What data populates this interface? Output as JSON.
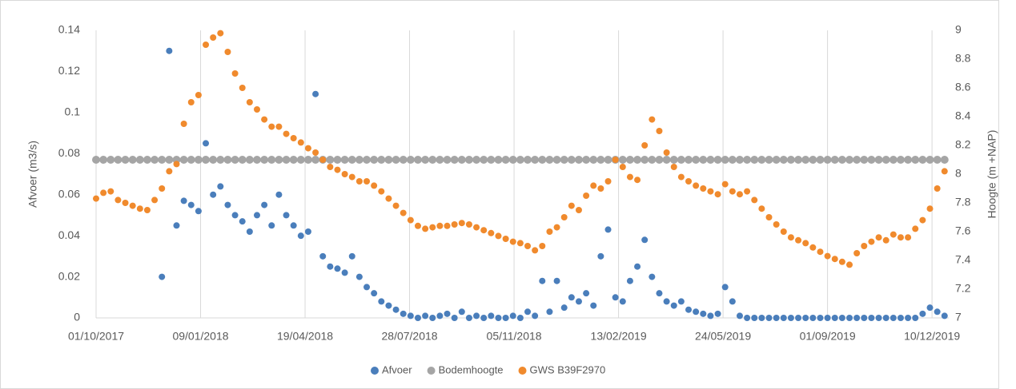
{
  "chart_data": {
    "type": "scatter",
    "y_label": "Afvoer (m3/s)",
    "y2_label": "Hoogte (m +NAP)",
    "x": [
      "01/10/2017",
      "08/10/2017",
      "15/10/2017",
      "22/10/2017",
      "29/10/2017",
      "05/11/2017",
      "12/11/2017",
      "19/11/2017",
      "26/11/2017",
      "03/12/2017",
      "10/12/2017",
      "17/12/2017",
      "24/12/2017",
      "31/12/2017",
      "07/01/2018",
      "14/01/2018",
      "21/01/2018",
      "28/01/2018",
      "04/02/2018",
      "11/02/2018",
      "18/02/2018",
      "25/02/2018",
      "04/03/2018",
      "11/03/2018",
      "18/03/2018",
      "25/03/2018",
      "01/04/2018",
      "08/04/2018",
      "15/04/2018",
      "22/04/2018",
      "29/04/2018",
      "06/05/2018",
      "13/05/2018",
      "20/05/2018",
      "27/05/2018",
      "03/06/2018",
      "10/06/2018",
      "17/06/2018",
      "24/06/2018",
      "01/07/2018",
      "08/07/2018",
      "15/07/2018",
      "22/07/2018",
      "29/07/2018",
      "05/08/2018",
      "12/08/2018",
      "19/08/2018",
      "26/08/2018",
      "02/09/2018",
      "09/09/2018",
      "16/09/2018",
      "23/09/2018",
      "30/09/2018",
      "07/10/2018",
      "14/10/2018",
      "21/10/2018",
      "28/10/2018",
      "04/11/2018",
      "11/11/2018",
      "18/11/2018",
      "25/11/2018",
      "02/12/2018",
      "09/12/2018",
      "16/12/2018",
      "23/12/2018",
      "30/12/2018",
      "06/01/2019",
      "13/01/2019",
      "20/01/2019",
      "27/01/2019",
      "03/02/2019",
      "10/02/2019",
      "17/02/2019",
      "24/02/2019",
      "03/03/2019",
      "10/03/2019",
      "17/03/2019",
      "24/03/2019",
      "31/03/2019",
      "07/04/2019",
      "14/04/2019",
      "21/04/2019",
      "28/04/2019",
      "05/05/2019",
      "12/05/2019",
      "19/05/2019",
      "26/05/2019",
      "02/06/2019",
      "09/06/2019",
      "16/06/2019",
      "23/06/2019",
      "30/06/2019",
      "07/07/2019",
      "14/07/2019",
      "21/07/2019",
      "28/07/2019",
      "04/08/2019",
      "11/08/2019",
      "18/08/2019",
      "25/08/2019",
      "01/09/2019",
      "08/09/2019",
      "15/09/2019",
      "22/09/2019",
      "29/09/2019",
      "06/10/2019",
      "13/10/2019",
      "20/10/2019",
      "27/10/2019",
      "03/11/2019",
      "10/11/2019",
      "17/11/2019",
      "24/11/2019",
      "01/12/2019",
      "08/12/2019",
      "15/12/2019",
      "22/12/2019"
    ],
    "series": [
      {
        "name": "Afvoer",
        "color": "#4a7ebb",
        "axis": "y",
        "values": [
          null,
          null,
          null,
          null,
          null,
          null,
          null,
          null,
          null,
          0.02,
          0.13,
          0.045,
          0.057,
          0.055,
          0.052,
          0.085,
          0.06,
          0.064,
          0.055,
          0.05,
          0.047,
          0.042,
          0.05,
          0.055,
          0.045,
          0.06,
          0.05,
          0.045,
          0.04,
          0.042,
          0.109,
          0.03,
          0.025,
          0.024,
          0.022,
          0.03,
          0.02,
          0.015,
          0.012,
          0.008,
          0.006,
          0.004,
          0.002,
          0.001,
          0,
          0.001,
          0,
          0.001,
          0.002,
          0,
          0.003,
          0,
          0.001,
          0,
          0.001,
          0,
          0,
          0.001,
          0,
          0.003,
          0.001,
          0.018,
          0.003,
          0.018,
          0.005,
          0.01,
          0.008,
          0.012,
          0.006,
          0.03,
          0.043,
          0.01,
          0.008,
          0.018,
          0.025,
          0.038,
          0.02,
          0.012,
          0.008,
          0.006,
          0.008,
          0.004,
          0.003,
          0.002,
          0.001,
          0.002,
          0.015,
          0.008,
          0.001,
          0,
          0,
          0,
          0,
          0,
          0,
          0,
          0,
          0,
          0,
          0,
          0,
          0,
          0,
          0,
          0,
          0,
          0,
          0,
          0,
          0,
          0,
          0,
          0,
          0.002,
          0.005,
          0.003,
          0.001
        ]
      },
      {
        "name": "Bodemhoogte",
        "color": "#a5a5a5",
        "axis": "y",
        "values": [
          0.077,
          0.077,
          0.077,
          0.077,
          0.077,
          0.077,
          0.077,
          0.077,
          0.077,
          0.077,
          0.077,
          0.077,
          0.077,
          0.077,
          0.077,
          0.077,
          0.077,
          0.077,
          0.077,
          0.077,
          0.077,
          0.077,
          0.077,
          0.077,
          0.077,
          0.077,
          0.077,
          0.077,
          0.077,
          0.077,
          0.077,
          0.077,
          0.077,
          0.077,
          0.077,
          0.077,
          0.077,
          0.077,
          0.077,
          0.077,
          0.077,
          0.077,
          0.077,
          0.077,
          0.077,
          0.077,
          0.077,
          0.077,
          0.077,
          0.077,
          0.077,
          0.077,
          0.077,
          0.077,
          0.077,
          0.077,
          0.077,
          0.077,
          0.077,
          0.077,
          0.077,
          0.077,
          0.077,
          0.077,
          0.077,
          0.077,
          0.077,
          0.077,
          0.077,
          0.077,
          0.077,
          0.077,
          0.077,
          0.077,
          0.077,
          0.077,
          0.077,
          0.077,
          0.077,
          0.077,
          0.077,
          0.077,
          0.077,
          0.077,
          0.077,
          0.077,
          0.077,
          0.077,
          0.077,
          0.077,
          0.077,
          0.077,
          0.077,
          0.077,
          0.077,
          0.077,
          0.077,
          0.077,
          0.077,
          0.077,
          0.077,
          0.077,
          0.077,
          0.077,
          0.077,
          0.077,
          0.077,
          0.077,
          0.077,
          0.077,
          0.077,
          0.077,
          0.077,
          0.077,
          0.077,
          0.077,
          0.077
        ]
      },
      {
        "name": "GWS B39F2970",
        "color": "#f08a2d",
        "axis": "y2",
        "values": [
          7.83,
          7.87,
          7.88,
          7.82,
          7.8,
          7.78,
          7.76,
          7.75,
          7.82,
          7.9,
          8.02,
          8.07,
          8.35,
          8.5,
          8.55,
          8.9,
          8.95,
          8.98,
          8.85,
          8.7,
          8.6,
          8.5,
          8.45,
          8.38,
          8.33,
          8.33,
          8.28,
          8.25,
          8.22,
          8.18,
          8.15,
          8.1,
          8.05,
          8.03,
          8,
          7.98,
          7.95,
          7.95,
          7.92,
          7.88,
          7.83,
          7.78,
          7.73,
          7.68,
          7.64,
          7.62,
          7.63,
          7.64,
          7.64,
          7.65,
          7.66,
          7.65,
          7.63,
          7.61,
          7.59,
          7.57,
          7.55,
          7.53,
          7.52,
          7.5,
          7.47,
          7.5,
          7.6,
          7.63,
          7.7,
          7.78,
          7.75,
          7.85,
          7.92,
          7.9,
          7.95,
          8.1,
          8.05,
          7.98,
          7.96,
          8.2,
          8.38,
          8.3,
          8.15,
          8.05,
          7.98,
          7.95,
          7.92,
          7.9,
          7.88,
          7.86,
          7.93,
          7.88,
          7.86,
          7.88,
          7.82,
          7.76,
          7.7,
          7.65,
          7.6,
          7.56,
          7.54,
          7.52,
          7.49,
          7.46,
          7.43,
          7.41,
          7.39,
          7.37,
          7.45,
          7.5,
          7.53,
          7.56,
          7.54,
          7.58,
          7.56,
          7.56,
          7.62,
          7.68,
          7.76,
          7.9,
          8.02
        ]
      }
    ],
    "xlim": [
      "01/10/2017",
      "26/12/2019"
    ],
    "xticks": [
      "01/10/2017",
      "09/01/2018",
      "19/04/2018",
      "28/07/2018",
      "05/11/2018",
      "13/02/2019",
      "24/05/2019",
      "01/09/2019",
      "10/12/2019"
    ],
    "ylim": [
      0,
      0.14
    ],
    "yticks": [
      0,
      0.02,
      0.04,
      0.06,
      0.08,
      0.1,
      0.12,
      0.14
    ],
    "y2lim": [
      7,
      9
    ],
    "y2ticks": [
      7,
      7.2,
      7.4,
      7.6,
      7.8,
      8,
      8.2,
      8.4,
      8.6,
      8.8,
      9
    ],
    "grid": "x",
    "legend": "bottom"
  }
}
